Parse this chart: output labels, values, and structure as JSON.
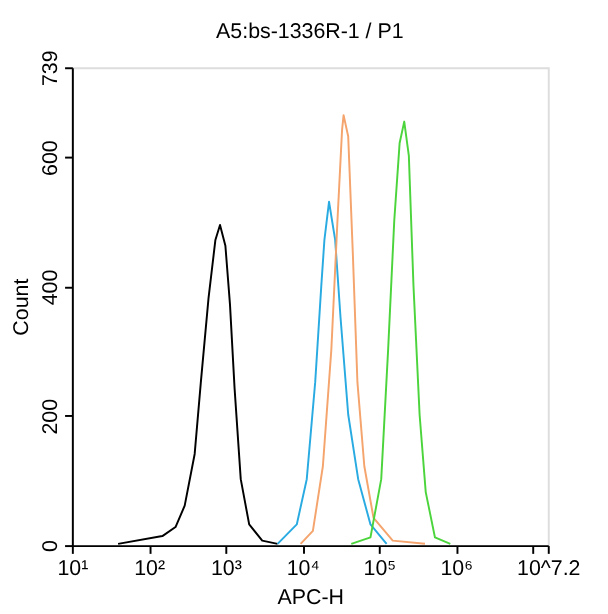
{
  "chart_data": {
    "type": "line",
    "title": "A5:bs-1336R-1 / P1",
    "xlabel": "APC-H",
    "ylabel": "Count",
    "log": "x",
    "grid": false,
    "legend": false,
    "marker": "none",
    "line_style": "solid",
    "xlim": [
      10,
      15848932
    ],
    "ylim": [
      0,
      739
    ],
    "xticks": [
      {
        "value": 10,
        "label": "10¹"
      },
      {
        "value": 100,
        "label": "10²"
      },
      {
        "value": 1000,
        "label": "10³"
      },
      {
        "value": 10000,
        "label": "10⁴"
      },
      {
        "value": 100000,
        "label": "10⁵"
      },
      {
        "value": 1000000,
        "label": "10⁶"
      },
      {
        "value": 10000000,
        "label": null
      },
      {
        "value": 15848932,
        "label": "10^7.2"
      }
    ],
    "yticks": [
      0,
      200,
      400,
      600,
      739
    ],
    "series": [
      {
        "color": "#000000",
        "x": [
          40,
          151,
          224,
          295,
          398,
          479,
          603,
          741,
          851,
          1000,
          1148,
          1318,
          1585,
          2042,
          3020,
          4786
        ],
        "values": [
          2,
          14,
          28,
          61,
          141,
          252,
          382,
          472,
          495,
          463,
          372,
          242,
          102,
          32,
          7,
          2
        ]
      },
      {
        "color": "#29abe2",
        "x": [
          4786,
          8511,
          11480,
          14790,
          17780,
          19500,
          22390,
          26920,
          31620,
          39810,
          53700,
          77620,
          125900
        ],
        "values": [
          2,
          32,
          102,
          252,
          402,
          472,
          531,
          472,
          352,
          202,
          102,
          32,
          2
        ]
      },
      {
        "color": "#f4a46c",
        "x": [
          9550,
          13800,
          18620,
          23990,
          28840,
          33110,
          34670,
          39810,
          45710,
          52480,
          64570,
          85110,
          151400,
          398100
        ],
        "values": [
          2,
          22,
          122,
          302,
          502,
          642,
          665,
          632,
          452,
          252,
          122,
          42,
          7,
          2
        ]
      },
      {
        "color": "#4cd43c",
        "x": [
          43650,
          77620,
          107200,
          131800,
          158500,
          186200,
          213800,
          245500,
          281800,
          338800,
          407400,
          537000,
          851100
        ],
        "values": [
          2,
          12,
          102,
          302,
          502,
          622,
          655,
          602,
          402,
          202,
          82,
          12,
          2
        ]
      }
    ]
  }
}
